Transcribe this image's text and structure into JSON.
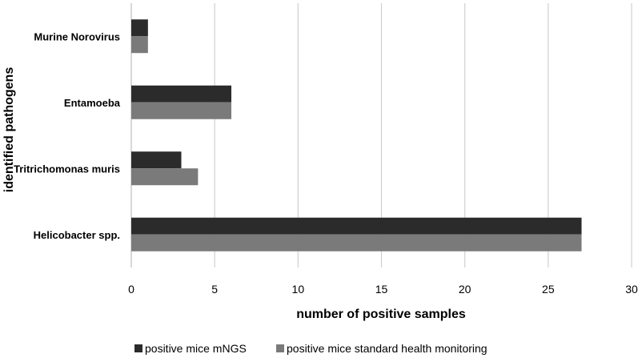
{
  "chart_data": {
    "type": "bar",
    "orientation": "horizontal",
    "categories": [
      "Helicobacter spp.",
      "Tritrichomonas muris",
      "Entamoeba",
      "Murine Norovirus"
    ],
    "series": [
      {
        "name": "positive mice mNGS",
        "values": [
          27,
          3,
          6,
          1
        ],
        "color": "#2b2b2b"
      },
      {
        "name": "positive mice standard health monitoring",
        "values": [
          27,
          4,
          6,
          1
        ],
        "color": "#7a7a7a"
      }
    ],
    "xlabel": "number of positive samples",
    "ylabel": "identified pathogens",
    "xlim": [
      0,
      30
    ],
    "xticks": [
      0,
      5,
      10,
      15,
      20,
      25,
      30
    ],
    "grid": "vertical",
    "legend_position": "bottom"
  }
}
